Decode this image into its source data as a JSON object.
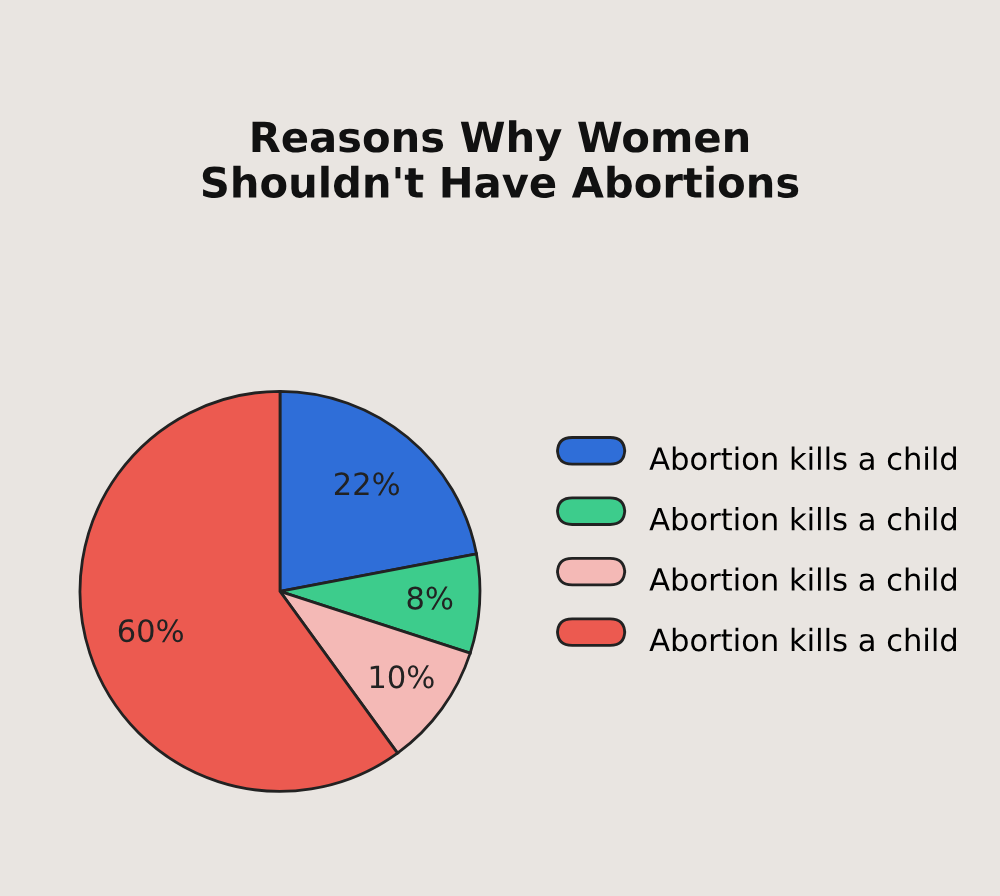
{
  "chart_data": {
    "type": "pie",
    "title": "Reasons Why Women\nShouldn't Have Abortions",
    "categories": [
      "Abortion kills a child",
      "Abortion kills a child",
      "Abortion kills a child",
      "Abortion kills a child"
    ],
    "values": [
      22,
      8,
      10,
      60
    ],
    "colors": [
      "#2f6ed8",
      "#3dcc8c",
      "#f4b9b6",
      "#ec5a50"
    ],
    "value_labels": [
      "22%",
      "8%",
      "10%",
      "60%"
    ],
    "legend": "right"
  }
}
